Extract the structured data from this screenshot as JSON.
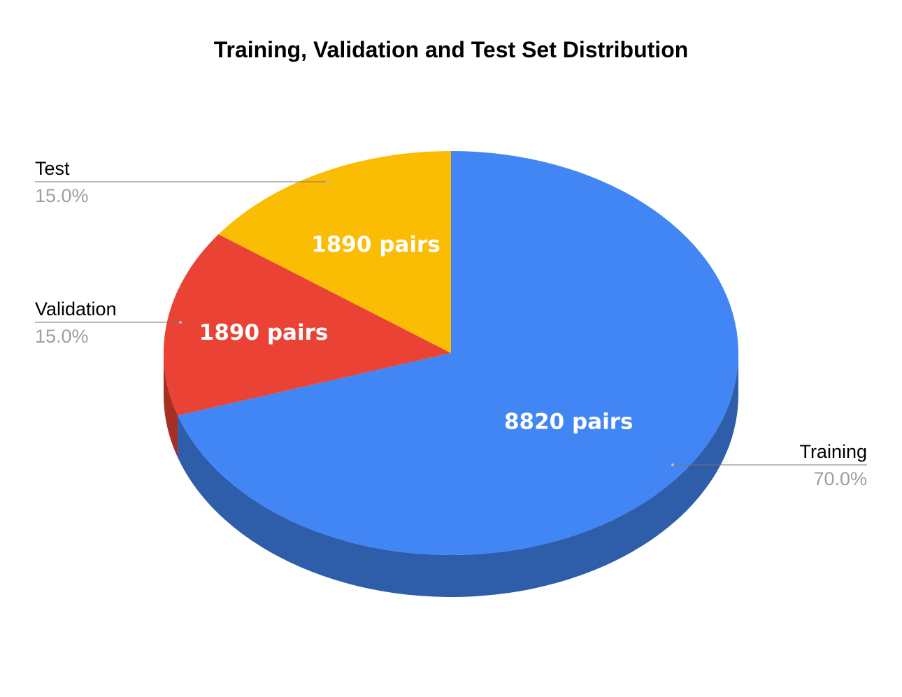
{
  "chart_data": {
    "type": "pie",
    "style": "3d",
    "title": "Training, Validation and Test Set Distribution",
    "categories": [
      "Training",
      "Validation",
      "Test"
    ],
    "values": [
      8820,
      1890,
      1890
    ],
    "percent_labels": [
      "70.0%",
      "15.0%",
      "15.0%"
    ],
    "slice_labels": [
      "8820 pairs",
      "1890 pairs",
      "1890 pairs"
    ],
    "colors": [
      "#4285f4",
      "#ea4335",
      "#fbbc04"
    ],
    "side_colors": [
      "#2e5daa",
      "#a52f25",
      "#b08403"
    ],
    "start_angle_deg": 0,
    "direction": "clockwise",
    "legend": "labeled-callouts"
  }
}
